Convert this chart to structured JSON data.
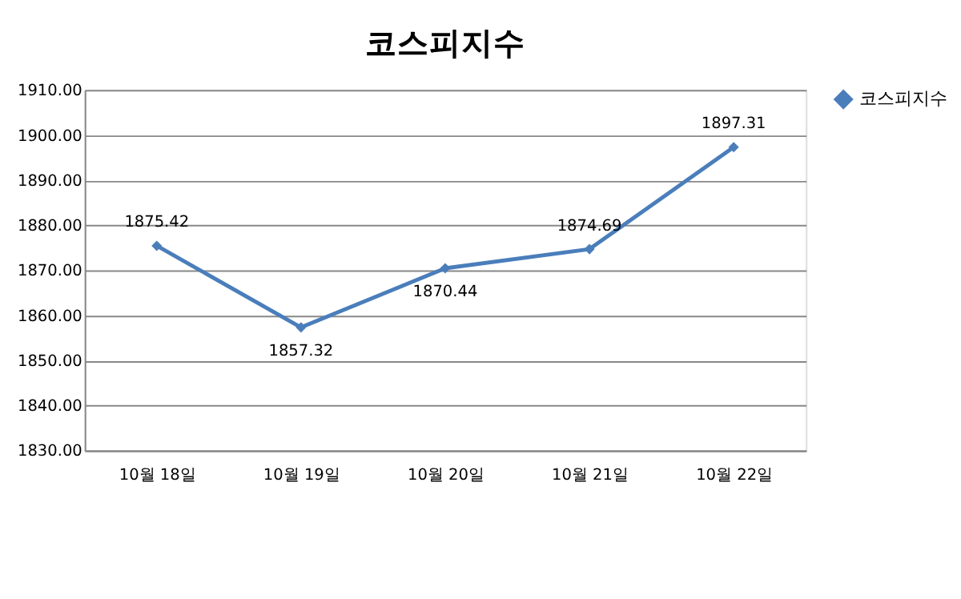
{
  "chart_data": {
    "type": "line",
    "title": "코스피지수",
    "categories": [
      "10월 18일",
      "10월 19일",
      "10월 20일",
      "10월 21일",
      "10월 22일"
    ],
    "series": [
      {
        "name": "코스피지수",
        "color": "#4a7ebb",
        "values": [
          1875.42,
          1857.32,
          1870.44,
          1874.69,
          1897.31
        ]
      }
    ],
    "ylim": [
      1830,
      1910
    ],
    "yticks": [
      {
        "value": 1830,
        "label": "1830.00"
      },
      {
        "value": 1840,
        "label": "1840.00"
      },
      {
        "value": 1850,
        "label": "1850.00"
      },
      {
        "value": 1860,
        "label": "1860.00"
      },
      {
        "value": 1870,
        "label": "1870.00"
      },
      {
        "value": 1880,
        "label": "1880.00"
      },
      {
        "value": 1890,
        "label": "1890.00"
      },
      {
        "value": 1900,
        "label": "1900.00"
      },
      {
        "value": 1910,
        "label": "1910.00"
      }
    ],
    "grid": "y",
    "legend": "right",
    "marker": "diamond",
    "line_style": "solid",
    "data_labels": true
  }
}
